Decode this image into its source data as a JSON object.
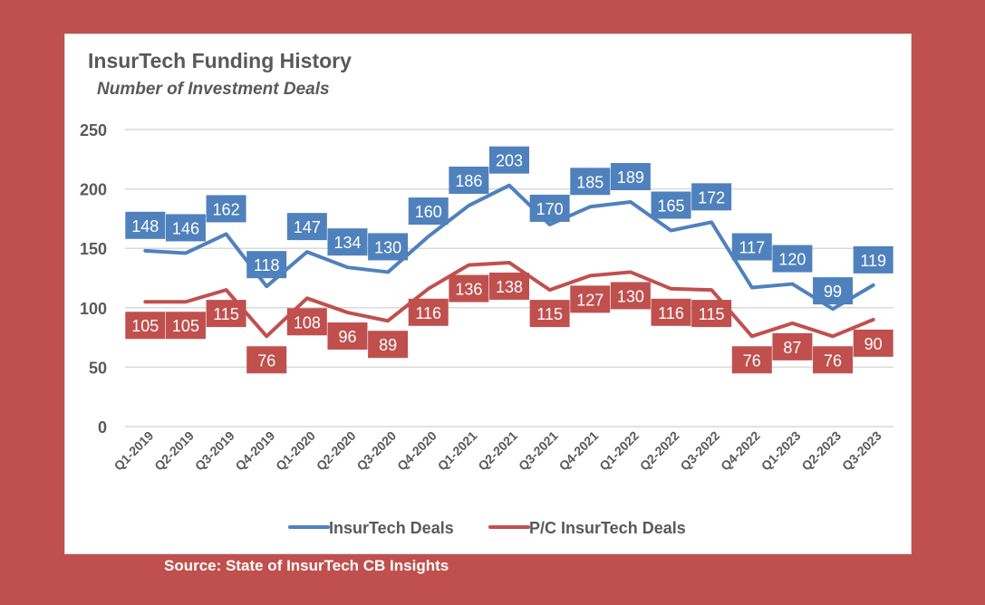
{
  "chart_data": {
    "type": "line",
    "title": "InsurTech Funding History",
    "subtitle": "Number of Investment Deals",
    "xlabel": "",
    "ylabel": "",
    "ylim": [
      0,
      250
    ],
    "yticks": [
      0,
      50,
      100,
      150,
      200,
      250
    ],
    "grid": true,
    "legend_position": "bottom",
    "categories": [
      "Q1-2019",
      "Q2-2019",
      "Q3-2019",
      "Q4-2019",
      "Q1-2020",
      "Q2-2020",
      "Q3-2020",
      "Q4-2020",
      "Q1-2021",
      "Q2-2021",
      "Q3-2021",
      "Q4-2021",
      "Q1-2022",
      "Q2-2022",
      "Q3-2022",
      "Q4-2022",
      "Q1-2023",
      "Q2-2023",
      "Q3-2023"
    ],
    "series": [
      {
        "name": "InsurTech Deals",
        "color": "#4f81bd",
        "values": [
          148,
          146,
          162,
          118,
          147,
          134,
          130,
          160,
          186,
          203,
          170,
          185,
          189,
          165,
          172,
          117,
          120,
          99,
          119
        ]
      },
      {
        "name": "P/C InsurTech Deals",
        "color": "#c0504d",
        "values": [
          105,
          105,
          115,
          76,
          108,
          96,
          89,
          116,
          136,
          138,
          115,
          127,
          130,
          116,
          115,
          76,
          87,
          76,
          90
        ]
      }
    ],
    "source": "Source: State of InsurTech CB Insights"
  },
  "colors": {
    "background": "#c0504d",
    "panel": "#ffffff",
    "text": "#595959",
    "grid": "#d9d9d9"
  }
}
